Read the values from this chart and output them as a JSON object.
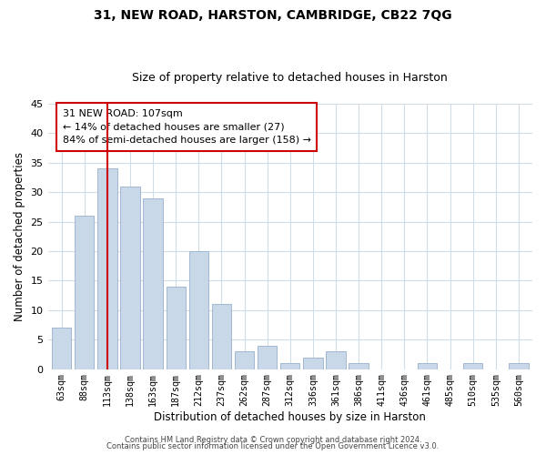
{
  "title": "31, NEW ROAD, HARSTON, CAMBRIDGE, CB22 7QG",
  "subtitle": "Size of property relative to detached houses in Harston",
  "xlabel": "Distribution of detached houses by size in Harston",
  "ylabel": "Number of detached properties",
  "bar_labels": [
    "63sqm",
    "88sqm",
    "113sqm",
    "138sqm",
    "163sqm",
    "187sqm",
    "212sqm",
    "237sqm",
    "262sqm",
    "287sqm",
    "312sqm",
    "336sqm",
    "361sqm",
    "386sqm",
    "411sqm",
    "436sqm",
    "461sqm",
    "485sqm",
    "510sqm",
    "535sqm",
    "560sqm"
  ],
  "bar_values": [
    7,
    26,
    34,
    31,
    29,
    14,
    20,
    11,
    3,
    4,
    1,
    2,
    3,
    1,
    0,
    0,
    1,
    0,
    1,
    0,
    1
  ],
  "bar_color": "#c8d8e8",
  "bar_edge_color": "#a0b8d0",
  "vline_x": 2,
  "vline_color": "#cc0000",
  "ylim": [
    0,
    45
  ],
  "yticks": [
    0,
    5,
    10,
    15,
    20,
    25,
    30,
    35,
    40,
    45
  ],
  "annotation_line1": "31 NEW ROAD: 107sqm",
  "annotation_line2": "← 14% of detached houses are smaller (27)",
  "annotation_line3": "84% of semi-detached houses are larger (158) →",
  "annotation_box_edge": "#cc0000",
  "annotation_box_facecolor": "#ffffff",
  "footer_line1": "Contains HM Land Registry data © Crown copyright and database right 2024.",
  "footer_line2": "Contains public sector information licensed under the Open Government Licence v3.0.",
  "background_color": "#ffffff",
  "grid_color": "#d0dce8"
}
